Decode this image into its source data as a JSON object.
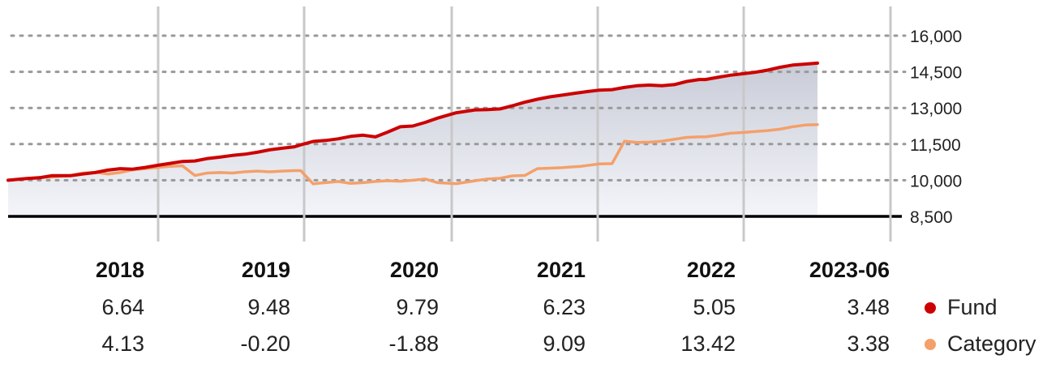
{
  "chart_data": {
    "type": "line",
    "y_ticks": [
      "16,000",
      "14,500",
      "13,000",
      "11,500",
      "10,000",
      "8,500"
    ],
    "y_tick_values": [
      16000,
      14500,
      13000,
      11500,
      10000,
      8500
    ],
    "ylim": [
      7500,
      17200
    ],
    "baseline": 8500,
    "x_range": [
      2017.0,
      2023.5
    ],
    "grid": true,
    "legend_placement": "bottom-right",
    "series": [
      {
        "name": "Fund",
        "color": "#cc0000",
        "x": [
          2017.0,
          2017.15,
          2017.25,
          2017.35,
          2017.5,
          2017.6,
          2017.7,
          2017.8,
          2017.9,
          2018.0,
          2018.1,
          2018.2,
          2018.3,
          2018.4,
          2018.5,
          2018.6,
          2018.7,
          2018.8,
          2018.9,
          2019.0,
          2019.1,
          2019.2,
          2019.3,
          2019.35,
          2019.45,
          2019.55,
          2019.65,
          2019.75,
          2019.85,
          2019.95,
          2020.05,
          2020.15,
          2020.25,
          2020.35,
          2020.45,
          2020.6,
          2020.75,
          2020.85,
          2020.95,
          2021.05,
          2021.15,
          2021.25,
          2021.35,
          2021.45,
          2021.55,
          2021.65,
          2021.75,
          2021.85,
          2021.95,
          2022.05,
          2022.15,
          2022.25,
          2022.35,
          2022.45,
          2022.55,
          2022.6,
          2022.7,
          2022.8,
          2022.9,
          2023.0,
          2023.1,
          2023.2,
          2023.3,
          2023.4,
          2023.5
        ],
        "values": [
          10000,
          10070,
          10100,
          10190,
          10190,
          10260,
          10320,
          10420,
          10480,
          10460,
          10530,
          10620,
          10700,
          10780,
          10800,
          10900,
          10960,
          11030,
          11080,
          11160,
          11260,
          11330,
          11390,
          11470,
          11610,
          11650,
          11720,
          11820,
          11870,
          11800,
          12000,
          12220,
          12250,
          12400,
          12580,
          12800,
          12920,
          12930,
          12960,
          13090,
          13240,
          13360,
          13460,
          13530,
          13610,
          13680,
          13740,
          13760,
          13850,
          13920,
          13950,
          13920,
          13970,
          14100,
          14180,
          14180,
          14270,
          14360,
          14420,
          14480,
          14570,
          14690,
          14780,
          14820,
          14860
        ]
      },
      {
        "name": "Category",
        "color": "#f4a06a",
        "x": [
          2017.0,
          2017.15,
          2017.25,
          2017.35,
          2017.5,
          2017.6,
          2017.7,
          2017.8,
          2017.9,
          2018.0,
          2018.1,
          2018.2,
          2018.3,
          2018.4,
          2018.5,
          2018.6,
          2018.7,
          2018.8,
          2018.9,
          2019.0,
          2019.1,
          2019.2,
          2019.3,
          2019.35,
          2019.45,
          2019.5,
          2019.55,
          2019.65,
          2019.75,
          2019.85,
          2019.95,
          2020.05,
          2020.15,
          2020.25,
          2020.35,
          2020.45,
          2020.6,
          2020.75,
          2020.85,
          2020.95,
          2021.05,
          2021.15,
          2021.25,
          2021.35,
          2021.45,
          2021.5,
          2021.6,
          2021.75,
          2021.85,
          2021.95,
          2022.05,
          2022.15,
          2022.25,
          2022.35,
          2022.45,
          2022.55,
          2022.6,
          2022.7,
          2022.8,
          2022.9,
          2023.0,
          2023.1,
          2023.2,
          2023.3,
          2023.4,
          2023.5
        ],
        "values": [
          10000,
          10070,
          10120,
          10130,
          10200,
          10300,
          10330,
          10260,
          10320,
          10430,
          10480,
          10530,
          10580,
          10600,
          10200,
          10300,
          10320,
          10300,
          10350,
          10380,
          10350,
          10380,
          10400,
          10400,
          9850,
          9880,
          9900,
          9950,
          9870,
          9900,
          9950,
          9980,
          9960,
          10000,
          10050,
          9900,
          9860,
          9980,
          10050,
          10080,
          10180,
          10200,
          10480,
          10500,
          10520,
          10540,
          10580,
          10680,
          10690,
          11620,
          11570,
          11580,
          11620,
          11700,
          11780,
          11800,
          11800,
          11870,
          11950,
          11980,
          12020,
          12060,
          12120,
          12220,
          12290,
          12310
        ]
      }
    ]
  },
  "table": {
    "headers": [
      "2018",
      "2019",
      "2020",
      "2021",
      "2022",
      "2023-06"
    ],
    "rows": [
      {
        "name": "Fund",
        "color": "#cc0000",
        "values": [
          "6.64",
          "9.48",
          "9.79",
          "6.23",
          "5.05",
          "3.48"
        ]
      },
      {
        "name": "Category",
        "color": "#f4a06a",
        "values": [
          "4.13",
          "-0.20",
          "-1.88",
          "9.09",
          "13.42",
          "3.38"
        ]
      }
    ]
  },
  "colors": {
    "fund": "#cc0000",
    "category": "#f4a06a",
    "area_top": "#c9ccd8",
    "area_bottom": "#f2f3f7",
    "gridline": "#999999",
    "vertical_divider": "#c8c8c8",
    "baseline": "#000000"
  }
}
